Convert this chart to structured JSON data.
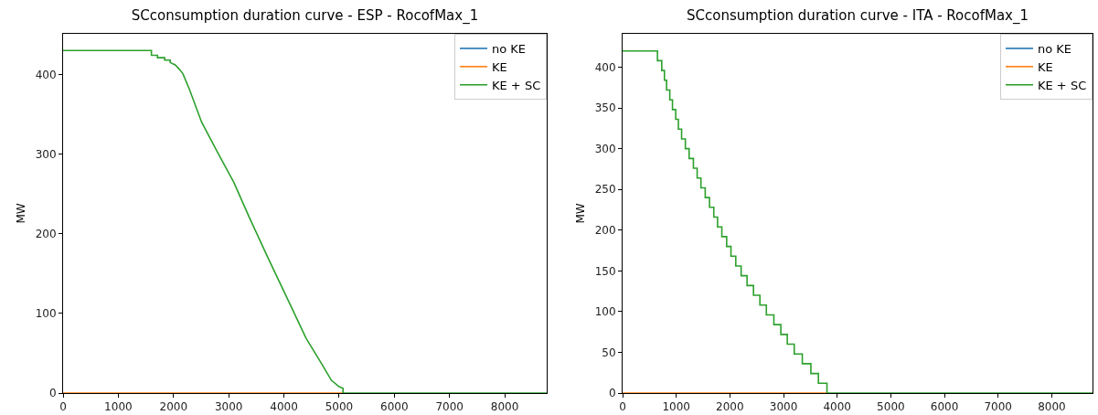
{
  "chart_data": [
    {
      "type": "line",
      "title": "SCconsumption duration curve - ESP - RocofMax_1",
      "ylabel": "MW",
      "xlim": [
        0,
        8760
      ],
      "xticks": [
        0,
        1000,
        2000,
        3000,
        4000,
        5000,
        6000,
        7000,
        8000
      ],
      "ylim": [
        0,
        451
      ],
      "yticks": [
        0,
        100,
        200,
        300,
        400
      ],
      "grid": false,
      "legend": "top right",
      "series": [
        {
          "name": "no KE",
          "color": "#1f77b4"
        },
        {
          "name": "KE",
          "color": "#ff7f0e",
          "x": [
            0,
            5070
          ],
          "values": [
            0,
            0
          ]
        },
        {
          "name": "KE + SC",
          "color": "#2ca02c",
          "x": [
            0,
            1600,
            1600,
            1710,
            1710,
            1840,
            1840,
            1940,
            1940,
            2030,
            2100,
            2170,
            2290,
            2510,
            2800,
            3090,
            3370,
            3710,
            4060,
            4400,
            4690,
            4860,
            5000,
            5070,
            5070,
            8760
          ],
          "values": [
            430,
            430,
            424,
            424,
            421,
            421,
            418,
            418,
            415,
            412,
            407,
            401,
            381,
            340,
            302,
            265,
            221,
            170,
            119,
            69,
            36,
            16,
            8,
            6,
            0,
            0
          ]
        }
      ]
    },
    {
      "type": "step",
      "title": "SCconsumption duration curve - ITA - RocofMax_1",
      "ylabel": "MW",
      "xlim": [
        0,
        8760
      ],
      "xticks": [
        0,
        1000,
        2000,
        3000,
        4000,
        5000,
        6000,
        7000,
        8000
      ],
      "ylim": [
        0,
        441
      ],
      "yticks": [
        0,
        50,
        100,
        150,
        200,
        250,
        300,
        350,
        400
      ],
      "grid": false,
      "legend": "top right",
      "series": [
        {
          "name": "no KE",
          "color": "#1f77b4"
        },
        {
          "name": "KE",
          "color": "#ff7f0e",
          "x": [
            0,
            3810
          ],
          "values": [
            0,
            0
          ]
        },
        {
          "name": "KE + SC",
          "color": "#2ca02c",
          "x": [
            0,
            650,
            730,
            780,
            820,
            880,
            930,
            990,
            1040,
            1100,
            1170,
            1240,
            1320,
            1390,
            1460,
            1540,
            1620,
            1700,
            1770,
            1850,
            1940,
            2020,
            2110,
            2210,
            2320,
            2440,
            2560,
            2680,
            2820,
            2950,
            3070,
            3200,
            3350,
            3510,
            3650,
            3810,
            8760
          ],
          "values": [
            420,
            408,
            396,
            384,
            372,
            360,
            348,
            336,
            324,
            312,
            300,
            288,
            276,
            264,
            252,
            240,
            228,
            216,
            204,
            192,
            180,
            168,
            156,
            144,
            132,
            120,
            108,
            96,
            84,
            72,
            60,
            48,
            36,
            24,
            12,
            0,
            0
          ]
        }
      ]
    }
  ]
}
